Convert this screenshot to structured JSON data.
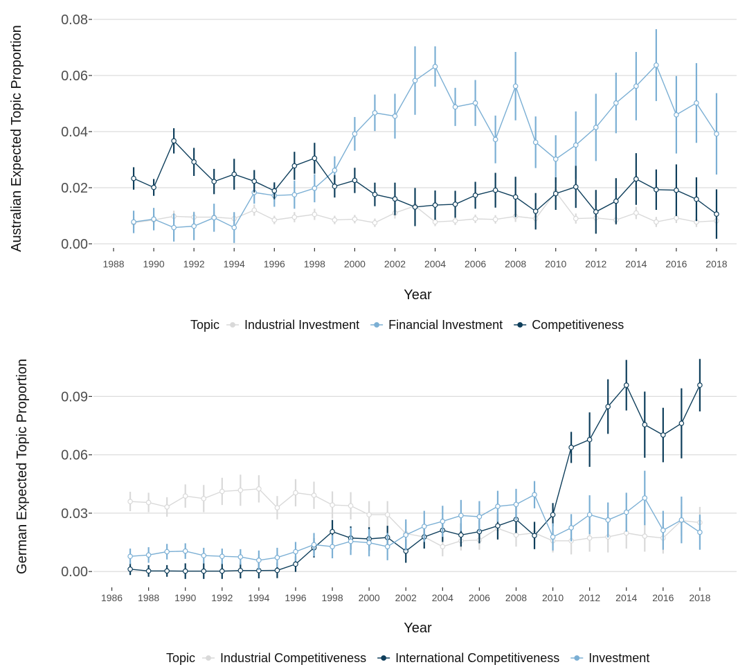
{
  "chart_data": [
    {
      "type": "line",
      "xlabel": "Year",
      "ylabel": "Australian Expected Topic Proportion",
      "xlim": [
        1987,
        2019
      ],
      "ylim": [
        0,
        0.08
      ],
      "x_ticks": [
        1988,
        1990,
        1992,
        1994,
        1996,
        1998,
        2000,
        2002,
        2004,
        2006,
        2008,
        2010,
        2012,
        2014,
        2016,
        2018
      ],
      "y_ticks": [
        "0.00",
        "0.02",
        "0.04",
        "0.06",
        "0.08"
      ],
      "y_tick_values": [
        0,
        0.02,
        0.04,
        0.06,
        0.08
      ],
      "grid": true,
      "legend_title": "Topic",
      "legend_position": "bottom",
      "x": [
        1989,
        1990,
        1991,
        1992,
        1993,
        1994,
        1995,
        1996,
        1997,
        1998,
        1999,
        2000,
        2001,
        2002,
        2003,
        2004,
        2005,
        2006,
        2007,
        2008,
        2009,
        2010,
        2011,
        2012,
        2013,
        2014,
        2015,
        2016,
        2017,
        2018
      ],
      "series": [
        {
          "name": "Industrial Investment",
          "color": "#d9d9d9",
          "values": [
            0.0075,
            0.0085,
            0.0098,
            0.0095,
            0.0095,
            0.009,
            0.012,
            0.0085,
            0.0095,
            0.0105,
            0.0085,
            0.0088,
            0.0075,
            0.011,
            0.0135,
            0.0078,
            0.0082,
            0.0089,
            0.0087,
            0.0098,
            0.009,
            0.0185,
            0.009,
            0.0092,
            0.0085,
            0.011,
            0.0078,
            0.0092,
            0.0078,
            0.0082
          ],
          "err": [
            0.002,
            0.002,
            0.002,
            0.002,
            0.002,
            0.002,
            0.002,
            0.0015,
            0.0018,
            0.002,
            0.0015,
            0.0015,
            0.0015,
            0.002,
            0.002,
            0.0015,
            0.0015,
            0.0015,
            0.0015,
            0.002,
            0.0015,
            0.003,
            0.0018,
            0.0018,
            0.0018,
            0.0022,
            0.0018,
            0.0018,
            0.0018,
            0.0018
          ]
        },
        {
          "name": "Financial Investment",
          "color": "#7bafd4",
          "values": [
            0.0078,
            0.0088,
            0.0058,
            0.0063,
            0.0093,
            0.0058,
            0.0183,
            0.0172,
            0.0175,
            0.0198,
            0.0262,
            0.0392,
            0.0467,
            0.0455,
            0.0582,
            0.0632,
            0.0488,
            0.0502,
            0.0372,
            0.0562,
            0.0362,
            0.0302,
            0.0352,
            0.0415,
            0.0502,
            0.0562,
            0.0637,
            0.046,
            0.0502,
            0.0392
          ],
          "err": [
            0.004,
            0.004,
            0.005,
            0.005,
            0.005,
            0.0055,
            0.004,
            0.004,
            0.005,
            0.005,
            0.005,
            0.006,
            0.0065,
            0.008,
            0.0122,
            0.0072,
            0.0068,
            0.0082,
            0.0085,
            0.0122,
            0.0092,
            0.0085,
            0.012,
            0.012,
            0.0108,
            0.0122,
            0.0128,
            0.0138,
            0.0142,
            0.0145
          ]
        },
        {
          "name": "Competitiveness",
          "color": "#0e3e5b",
          "values": [
            0.0233,
            0.0201,
            0.0367,
            0.0292,
            0.0222,
            0.0248,
            0.0223,
            0.0189,
            0.0278,
            0.0305,
            0.0205,
            0.0226,
            0.0176,
            0.016,
            0.0131,
            0.0138,
            0.0141,
            0.0173,
            0.0191,
            0.0167,
            0.0116,
            0.0179,
            0.0203,
            0.0114,
            0.0152,
            0.0231,
            0.0193,
            0.0191,
            0.0159,
            0.0106
          ],
          "err": [
            0.004,
            0.003,
            0.0045,
            0.005,
            0.0045,
            0.0055,
            0.004,
            0.003,
            0.005,
            0.0055,
            0.004,
            0.0045,
            0.0042,
            0.0058,
            0.0068,
            0.0052,
            0.0048,
            0.0048,
            0.0062,
            0.0072,
            0.0065,
            0.0058,
            0.0075,
            0.0078,
            0.0082,
            0.0092,
            0.0072,
            0.0092,
            0.0078,
            0.0088
          ]
        }
      ]
    },
    {
      "type": "line",
      "xlabel": "Year",
      "ylabel": "German Expected Topic Proportion",
      "xlim": [
        1985,
        2020
      ],
      "ylim": [
        -0.006,
        0.114
      ],
      "x_ticks": [
        1986,
        1988,
        1990,
        1992,
        1994,
        1996,
        1998,
        2000,
        2002,
        2004,
        2006,
        2008,
        2010,
        2012,
        2014,
        2016,
        2018
      ],
      "y_ticks": [
        "0.00",
        "0.03",
        "0.06",
        "0.09"
      ],
      "y_tick_values": [
        0,
        0.03,
        0.06,
        0.09
      ],
      "grid": true,
      "legend_title": "Topic",
      "legend_position": "bottom",
      "x": [
        1987,
        1988,
        1989,
        1990,
        1991,
        1992,
        1993,
        1994,
        1995,
        1996,
        1997,
        1998,
        1999,
        2000,
        2001,
        2002,
        2003,
        2004,
        2005,
        2006,
        2007,
        2008,
        2009,
        2010,
        2011,
        2012,
        2013,
        2014,
        2015,
        2016,
        2017,
        2018
      ],
      "series": [
        {
          "name": "Industrial Competitiveness",
          "color": "#d9d9d9",
          "values": [
            0.036,
            0.0355,
            0.0332,
            0.0388,
            0.0375,
            0.0412,
            0.0418,
            0.0425,
            0.0328,
            0.0405,
            0.0392,
            0.0342,
            0.0338,
            0.0292,
            0.0292,
            0.0195,
            0.0178,
            0.0128,
            0.0158,
            0.0162,
            0.0222,
            0.0188,
            0.0198,
            0.0158,
            0.0158,
            0.0172,
            0.0178,
            0.0198,
            0.0182,
            0.0172,
            0.0262,
            0.0252
          ],
          "err": [
            0.005,
            0.005,
            0.005,
            0.006,
            0.007,
            0.007,
            0.008,
            0.007,
            0.006,
            0.007,
            0.007,
            0.007,
            0.007,
            0.007,
            0.007,
            0.006,
            0.006,
            0.005,
            0.005,
            0.005,
            0.006,
            0.006,
            0.006,
            0.006,
            0.007,
            0.007,
            0.008,
            0.008,
            0.008,
            0.008,
            0.008,
            0.008
          ]
        },
        {
          "name": "International Competitiveness",
          "color": "#0e3e5b",
          "values": [
            0.0012,
            0.0003,
            0.0003,
            0.0002,
            0.0002,
            0.0002,
            0.0005,
            0.0005,
            0.0006,
            0.0038,
            0.0122,
            0.0205,
            0.0172,
            0.0168,
            0.0175,
            0.0105,
            0.0178,
            0.0212,
            0.0188,
            0.0205,
            0.0235,
            0.0268,
            0.0185,
            0.0292,
            0.0638,
            0.0678,
            0.0848,
            0.0958,
            0.0755,
            0.0702,
            0.0762,
            0.0958
          ],
          "err": [
            0.003,
            0.003,
            0.003,
            0.004,
            0.004,
            0.004,
            0.004,
            0.004,
            0.004,
            0.004,
            0.005,
            0.006,
            0.006,
            0.006,
            0.006,
            0.006,
            0.006,
            0.006,
            0.006,
            0.006,
            0.007,
            0.007,
            0.007,
            0.006,
            0.008,
            0.014,
            0.014,
            0.013,
            0.017,
            0.014,
            0.018,
            0.0135
          ]
        },
        {
          "name": "Investment",
          "color": "#7bafd4",
          "values": [
            0.0078,
            0.0085,
            0.0102,
            0.0105,
            0.0082,
            0.0078,
            0.0075,
            0.0058,
            0.0072,
            0.0102,
            0.0138,
            0.0128,
            0.0155,
            0.0148,
            0.0128,
            0.0188,
            0.0232,
            0.0258,
            0.0288,
            0.0282,
            0.0335,
            0.0345,
            0.0395,
            0.0178,
            0.0225,
            0.0292,
            0.0265,
            0.0305,
            0.0378,
            0.0212,
            0.0265,
            0.0202
          ],
          "err": [
            0.004,
            0.004,
            0.004,
            0.004,
            0.004,
            0.004,
            0.004,
            0.005,
            0.005,
            0.005,
            0.006,
            0.006,
            0.007,
            0.007,
            0.007,
            0.008,
            0.008,
            0.008,
            0.008,
            0.008,
            0.008,
            0.008,
            0.007,
            0.007,
            0.007,
            0.01,
            0.009,
            0.01,
            0.014,
            0.01,
            0.012,
            0.009
          ]
        }
      ]
    }
  ]
}
